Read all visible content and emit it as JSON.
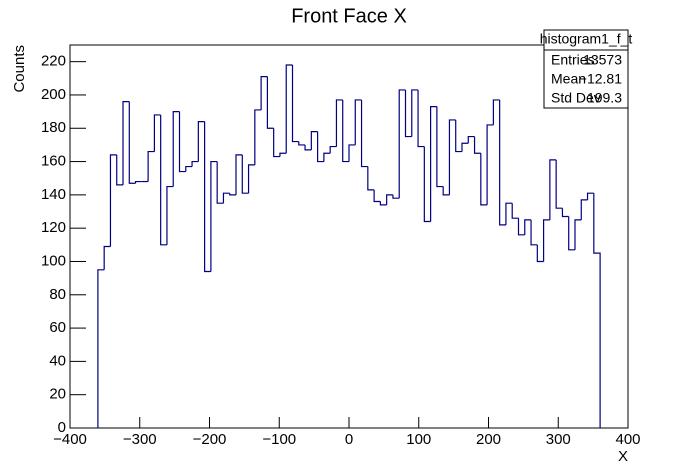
{
  "chart_data": {
    "type": "histogram",
    "title": "Front Face X",
    "x_label": "X",
    "y_label": "Counts",
    "color": "#000080",
    "bins": [
      -360,
      -351,
      -342,
      -333,
      -324,
      -315,
      -306,
      -297,
      -288,
      -279,
      -270,
      -261,
      -252,
      -243,
      -234,
      -225,
      -216,
      -207,
      -198,
      -189,
      -180,
      -171,
      -162,
      -153,
      -144,
      -135,
      -126,
      -117,
      -108,
      -99,
      -90,
      -81,
      -72,
      -63,
      -54,
      -45,
      -36,
      -27,
      -18,
      -9,
      0,
      9,
      18,
      27,
      36,
      45,
      54,
      63,
      72,
      81,
      90,
      99,
      108,
      117,
      126,
      135,
      144,
      153,
      162,
      171,
      180,
      189,
      198,
      207,
      216,
      225,
      234,
      243,
      252,
      261,
      270,
      279,
      288,
      297,
      306,
      315,
      324,
      333,
      342,
      351,
      360
    ],
    "values": [
      95,
      109,
      164,
      146,
      196,
      147,
      148,
      148,
      166,
      188,
      110,
      145,
      190,
      154,
      157,
      160,
      184,
      94,
      160,
      135,
      141,
      140,
      164,
      141,
      158,
      191,
      211,
      180,
      163,
      165,
      218,
      172,
      170,
      167,
      178,
      160,
      165,
      169,
      197,
      160,
      170,
      197,
      157,
      143,
      136,
      134,
      140,
      138,
      203,
      175,
      203,
      169,
      124,
      193,
      145,
      140,
      185,
      166,
      171,
      175,
      165,
      134,
      182,
      197,
      122,
      135,
      126,
      116,
      125,
      110,
      100,
      125,
      161,
      132,
      127,
      107,
      125,
      137,
      141,
      105
    ],
    "xlim": [
      -400,
      400
    ],
    "xticks": [
      {
        "value": -400,
        "label": "−400"
      },
      {
        "value": -300,
        "label": "−300"
      },
      {
        "value": -200,
        "label": "−200"
      },
      {
        "value": -100,
        "label": "−100"
      },
      0,
      100,
      200,
      300,
      400
    ],
    "ylim": [
      0,
      230
    ],
    "yticks": [
      0,
      20,
      40,
      60,
      80,
      100,
      120,
      140,
      160,
      180,
      200,
      220
    ],
    "stats_box": {
      "title": "histogram1_f_t",
      "rows": [
        [
          "Entries",
          "13573"
        ],
        [
          "Mean",
          "−12.81"
        ],
        [
          "Std Dev",
          "199.3"
        ]
      ]
    }
  }
}
